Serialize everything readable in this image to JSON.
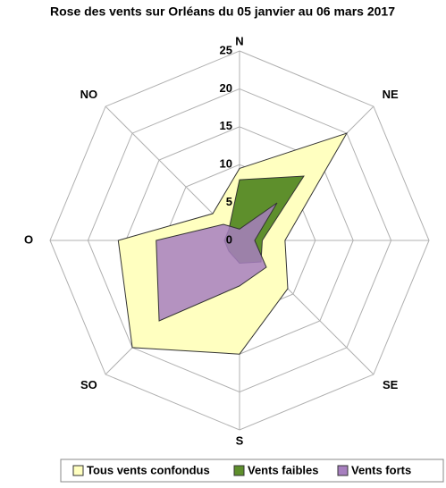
{
  "chart_data": {
    "type": "radar",
    "title": "Rose des vents sur Orléans du 05 janvier au 06 mars 2017",
    "categories": [
      "N",
      "NE",
      "E",
      "SE",
      "S",
      "SO",
      "O",
      "NO"
    ],
    "series": [
      {
        "name": "Tous vents confondus",
        "color": "#ffffc0",
        "values": [
          9.5,
          20,
          6,
          9,
          15,
          20,
          16,
          5
        ]
      },
      {
        "name": "Vents faibles",
        "color": "#5e8f2c",
        "values": [
          8,
          12,
          3,
          4,
          3,
          2,
          2,
          2
        ]
      },
      {
        "name": "Vents forts",
        "color": "#a77fbf",
        "values": [
          1.5,
          7,
          2,
          5,
          6,
          15,
          11,
          3
        ]
      }
    ],
    "rlim": [
      0,
      25
    ],
    "rticks": [
      0,
      5,
      10,
      15,
      20,
      25
    ],
    "grid": true
  }
}
